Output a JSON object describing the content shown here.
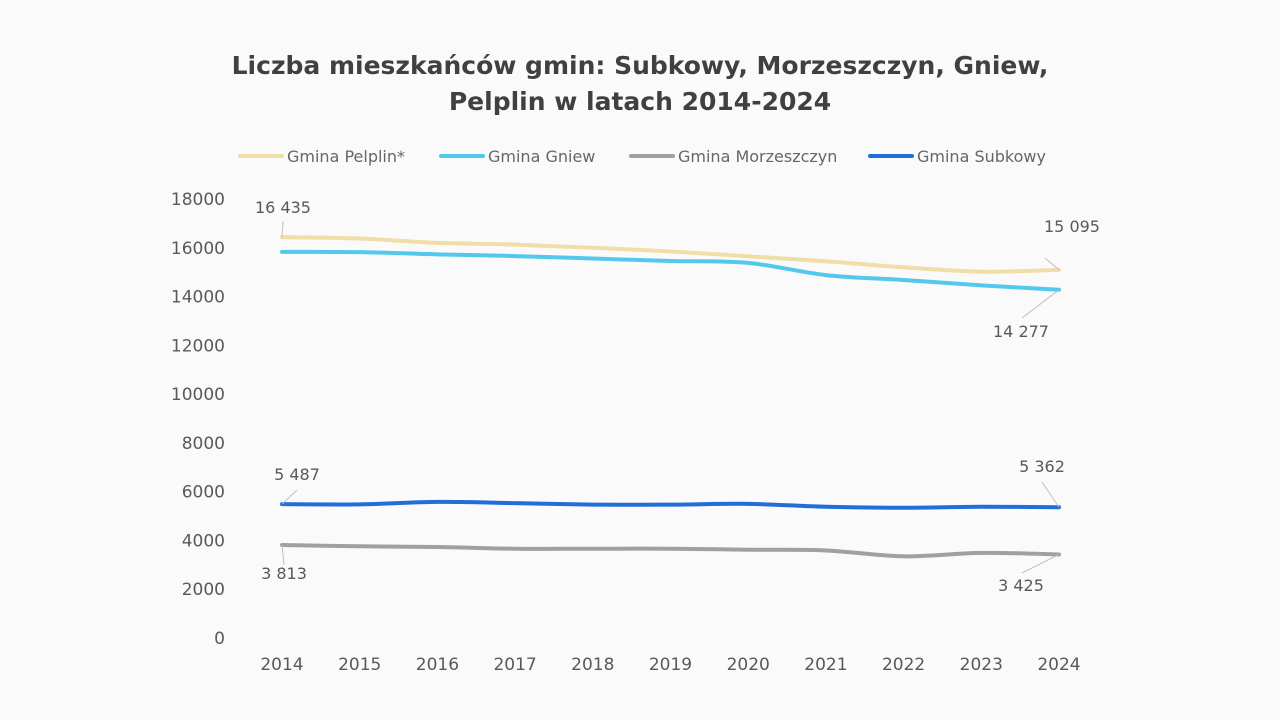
{
  "chart_data": {
    "type": "line",
    "title_lines": [
      "Liczba mieszkańców gmin: Subkowy, Morzeszczyn, Gniew,",
      "Pelplin w latach 2014-2024"
    ],
    "x": [
      "2014",
      "2015",
      "2016",
      "2017",
      "2018",
      "2019",
      "2020",
      "2021",
      "2022",
      "2023",
      "2024"
    ],
    "ylim": [
      0,
      18000
    ],
    "yticks": [
      "0",
      "2000",
      "4000",
      "6000",
      "8000",
      "10000",
      "12000",
      "14000",
      "16000",
      "18000"
    ],
    "grid": false,
    "legend_position": "top",
    "series": [
      {
        "name": "Gmina Pelplin*",
        "color": "#efdea8",
        "values": [
          16435,
          16380,
          16200,
          16130,
          16000,
          15850,
          15650,
          15450,
          15200,
          15020,
          15095
        ],
        "labels": {
          "first": "16 435",
          "last": "15 095"
        }
      },
      {
        "name": "Gmina Gniew",
        "color": "#52c8ec",
        "values": [
          15830,
          15820,
          15730,
          15660,
          15560,
          15460,
          15380,
          14880,
          14680,
          14460,
          14277
        ],
        "labels": {
          "first": "",
          "last": "14 277"
        }
      },
      {
        "name": "Gmina Morzeszczyn",
        "color": "#a0a0a0",
        "values": [
          3813,
          3760,
          3730,
          3660,
          3660,
          3660,
          3620,
          3590,
          3350,
          3490,
          3425
        ],
        "labels": {
          "first": "3 813",
          "last": "3 425"
        }
      },
      {
        "name": "Gmina Subkowy",
        "color": "#1f6fd6",
        "values": [
          5487,
          5480,
          5580,
          5530,
          5470,
          5470,
          5500,
          5380,
          5340,
          5380,
          5362
        ],
        "labels": {
          "first": "5 487",
          "last": "5 362"
        }
      }
    ]
  }
}
